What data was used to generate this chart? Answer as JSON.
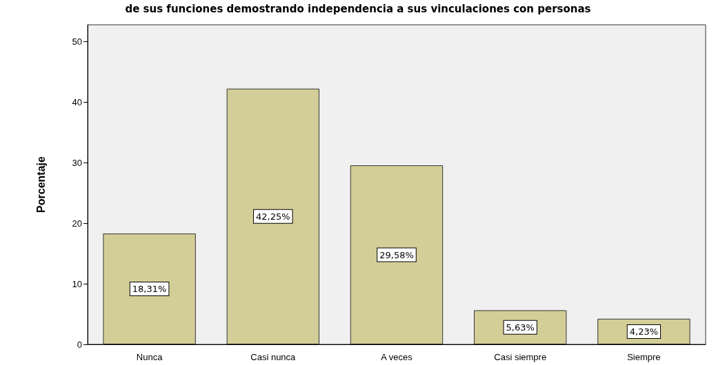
{
  "chart_data": {
    "type": "bar",
    "title": "de sus funciones demostrando independencia a sus vinculaciones con personas",
    "ylabel": "Porcentaje",
    "categories": [
      "Nunca",
      "Casi nunca",
      "A veces",
      "Casi siempre",
      "Siempre"
    ],
    "values": [
      18.31,
      42.25,
      29.58,
      5.63,
      4.23
    ],
    "value_labels": [
      "18,31%",
      "42,25%",
      "29,58%",
      "5,63%",
      "4,23%"
    ],
    "color": "#d3ce97",
    "ylim": [
      0,
      52.8
    ],
    "yticks": [
      0,
      10,
      20,
      30,
      40,
      50
    ],
    "grid": false
  }
}
